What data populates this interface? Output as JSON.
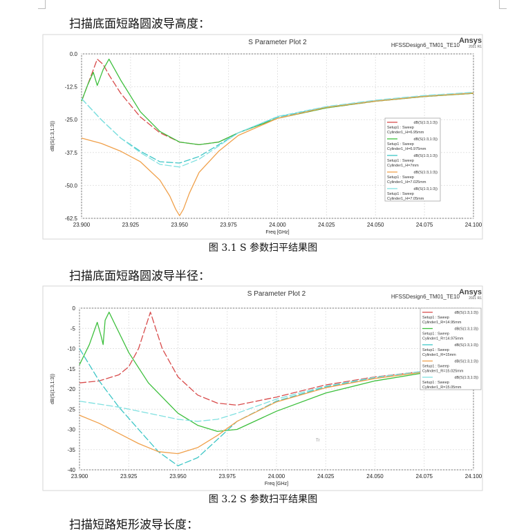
{
  "headings": {
    "h1": "扫描底面短路圆波导高度：",
    "h2": "扫描底面短路圆波导半径：",
    "h3": "扫描短路矩形波导长度："
  },
  "captions": {
    "c1": "图 3.1 S 参数扫平结果图",
    "c2": "图 3.2 S 参数扫平结果图"
  },
  "chart_data": [
    {
      "type": "line",
      "title": "S Parameter Plot 2",
      "design_label": "HFSSDesign6_TM01_TE10",
      "logo": "Ansys",
      "logo_sub": "2021 R1",
      "xlabel": "Freq [GHz]",
      "ylabel": "dB(S(1:3,1:3))",
      "xlim": [
        23.9,
        24.1
      ],
      "ylim": [
        -62.5,
        0
      ],
      "xticks": [
        "23.900",
        "23.925",
        "23.950",
        "23.975",
        "24.000",
        "24.025",
        "24.050",
        "24.075",
        "24.100"
      ],
      "yticks": [
        "0.0",
        "-12.5",
        "-25.0",
        "-37.5",
        "-50.0",
        "-62.5"
      ],
      "legend_position": "right",
      "grid": true,
      "series": [
        {
          "name": "dB(S(1:3,1:3))",
          "setup": "Setup1 : Sweep",
          "param": "Cylinder1_H=6.95mm",
          "color": "#d84a4a",
          "x": [
            23.9,
            23.905,
            23.908,
            23.911,
            23.914,
            23.92,
            23.93,
            23.94,
            23.95,
            23.96,
            23.97,
            23.98,
            24.0,
            24.025,
            24.05,
            24.075,
            24.1
          ],
          "y": [
            -18,
            -8,
            -2,
            -4,
            -8,
            -15,
            -24,
            -30,
            -33.5,
            -34.5,
            -33.5,
            -30,
            -24.5,
            -20.5,
            -18,
            -16.2,
            -15
          ]
        },
        {
          "name": "dB(S(1:3,1:3))",
          "setup": "Setup1 : Sweep",
          "param": "Cylinder1_H=6.975mm",
          "color": "#3cbf3c",
          "x": [
            23.9,
            23.903,
            23.906,
            23.908,
            23.911,
            23.914,
            23.92,
            23.93,
            23.94,
            23.95,
            23.96,
            23.97,
            23.98,
            24.0,
            24.025,
            24.05,
            24.075,
            24.1
          ],
          "y": [
            -18,
            -12,
            -7,
            -12,
            -6,
            -2,
            -10,
            -22,
            -29.5,
            -33.5,
            -34.5,
            -33.5,
            -30,
            -24.5,
            -20.5,
            -18,
            -16.2,
            -15
          ]
        },
        {
          "name": "dB(S(1:3,1:3))",
          "setup": "Setup1 : Sweep",
          "param": "Cylinder1_H=7mm",
          "color": "#3cc6c6",
          "x": [
            23.9,
            23.91,
            23.92,
            23.93,
            23.94,
            23.95,
            23.96,
            23.97,
            23.98,
            24.0,
            24.025,
            24.05,
            24.075,
            24.1
          ],
          "y": [
            -17,
            -25,
            -32,
            -37,
            -41,
            -41.5,
            -39,
            -34.5,
            -30,
            -24,
            -20.2,
            -17.8,
            -16,
            -14.8
          ]
        },
        {
          "name": "dB(S(1:3,1:3))",
          "setup": "Setup1 : Sweep",
          "param": "Cylinder1_H=7.025mm",
          "color": "#f0a04a",
          "x": [
            23.9,
            23.91,
            23.92,
            23.93,
            23.94,
            23.945,
            23.948,
            23.95,
            23.952,
            23.955,
            23.96,
            23.97,
            23.98,
            24.0,
            24.025,
            24.05,
            24.075,
            24.1
          ],
          "y": [
            -32,
            -34,
            -37,
            -41,
            -48,
            -54,
            -59,
            -61.5,
            -59,
            -53,
            -45,
            -37,
            -31,
            -24.5,
            -20.3,
            -17.9,
            -16.1,
            -14.9
          ]
        },
        {
          "name": "dB(S(1:3,1:3))",
          "setup": "Setup1 : Sweep",
          "param": "Cylinder1_H=7.05mm",
          "color": "#7fe0e0",
          "x": [
            23.9,
            23.91,
            23.92,
            23.93,
            23.94,
            23.95,
            23.96,
            23.97,
            23.98,
            24.0,
            24.025,
            24.05,
            24.075,
            24.1
          ],
          "y": [
            -17,
            -25,
            -32,
            -37.5,
            -42,
            -43,
            -40,
            -35,
            -30,
            -23.8,
            -20,
            -17.6,
            -15.8,
            -14.6
          ]
        }
      ]
    },
    {
      "type": "line",
      "title": "S Parameter Plot 2",
      "design_label": "HFSSDesign6_TM01_TE10",
      "logo": "Ansys",
      "logo_sub": "2021 R1",
      "xlabel": "Freq [GHz]",
      "ylabel": "dB(S(1:3,1:3))",
      "xlim": [
        23.9,
        24.1
      ],
      "ylim": [
        -40,
        0
      ],
      "xticks": [
        "23.900",
        "23.925",
        "23.950",
        "23.975",
        "24.000",
        "24.025",
        "24.050",
        "24.075",
        "24.100"
      ],
      "yticks": [
        "0",
        "-5",
        "-10",
        "-15",
        "-20",
        "-25",
        "-30",
        "-35",
        "-40"
      ],
      "legend_position": "top-right",
      "grid": true,
      "marker_text": "Tr",
      "series": [
        {
          "name": "dB(S(1:3,1:3))",
          "setup": "Setup1 : Sweep",
          "param": "Cylinder1_R=14.95mm",
          "color": "#d84a4a",
          "x": [
            23.9,
            23.91,
            23.92,
            23.925,
            23.93,
            23.934,
            23.936,
            23.938,
            23.942,
            23.95,
            23.96,
            23.97,
            23.98,
            24.0,
            24.025,
            24.05,
            24.075,
            24.1
          ],
          "y": [
            -18.5,
            -18,
            -16.5,
            -14.5,
            -10,
            -4,
            -1,
            -4,
            -10,
            -17,
            -21.5,
            -23.5,
            -24,
            -22,
            -19,
            -17,
            -15.6,
            -14.6
          ]
        },
        {
          "name": "dB(S(1:3,1:3))",
          "setup": "Setup1 : Sweep",
          "param": "Cylinder1_R=14.975mm",
          "color": "#3cbf3c",
          "x": [
            23.9,
            23.905,
            23.909,
            23.911,
            23.912,
            23.913,
            23.915,
            23.918,
            23.925,
            23.935,
            23.95,
            23.96,
            23.97,
            23.98,
            24.0,
            24.025,
            24.05,
            24.075,
            24.1
          ],
          "y": [
            -14,
            -9,
            -3.5,
            -7,
            -9,
            -3,
            -1,
            -4,
            -11,
            -18.5,
            -26,
            -29,
            -30.5,
            -30,
            -25.5,
            -21,
            -18,
            -16,
            -14.8
          ]
        },
        {
          "name": "dB(S(1:3,1:3))",
          "setup": "Setup1 : Sweep",
          "param": "Cylinder1_R=15mm",
          "color": "#3cc6c6",
          "x": [
            23.9,
            23.91,
            23.92,
            23.93,
            23.94,
            23.95,
            23.96,
            23.97,
            23.98,
            24.0,
            24.025,
            24.05,
            24.075,
            24.1
          ],
          "y": [
            -10,
            -18,
            -24.5,
            -30,
            -35.5,
            -39,
            -37,
            -32.5,
            -28,
            -23,
            -19.5,
            -17.2,
            -15.6,
            -14.5
          ]
        },
        {
          "name": "dB(S(1:3,1:3))",
          "setup": "Setup1 : Sweep",
          "param": "Cylinder1_R=15.025mm",
          "color": "#f0a04a",
          "x": [
            23.9,
            23.91,
            23.92,
            23.93,
            23.94,
            23.95,
            23.96,
            23.97,
            23.98,
            24.0,
            24.025,
            24.05,
            24.075,
            24.1
          ],
          "y": [
            -26.5,
            -28.5,
            -31,
            -33.5,
            -35.5,
            -36,
            -34.5,
            -31.5,
            -28,
            -23.2,
            -19.7,
            -17.4,
            -15.8,
            -14.7
          ]
        },
        {
          "name": "dB(S(1:3,1:3))",
          "setup": "Setup1 : Sweep",
          "param": "Cylinder1_R=15.05mm",
          "color": "#7fe0e0",
          "x": [
            23.9,
            23.92,
            23.94,
            23.95,
            23.96,
            23.97,
            23.98,
            24.0,
            24.025,
            24.05,
            24.075,
            24.1
          ],
          "y": [
            -23,
            -24.5,
            -26.5,
            -27.5,
            -28,
            -27.5,
            -26,
            -22.5,
            -19.3,
            -17.1,
            -15.6,
            -14.6
          ]
        }
      ]
    }
  ]
}
